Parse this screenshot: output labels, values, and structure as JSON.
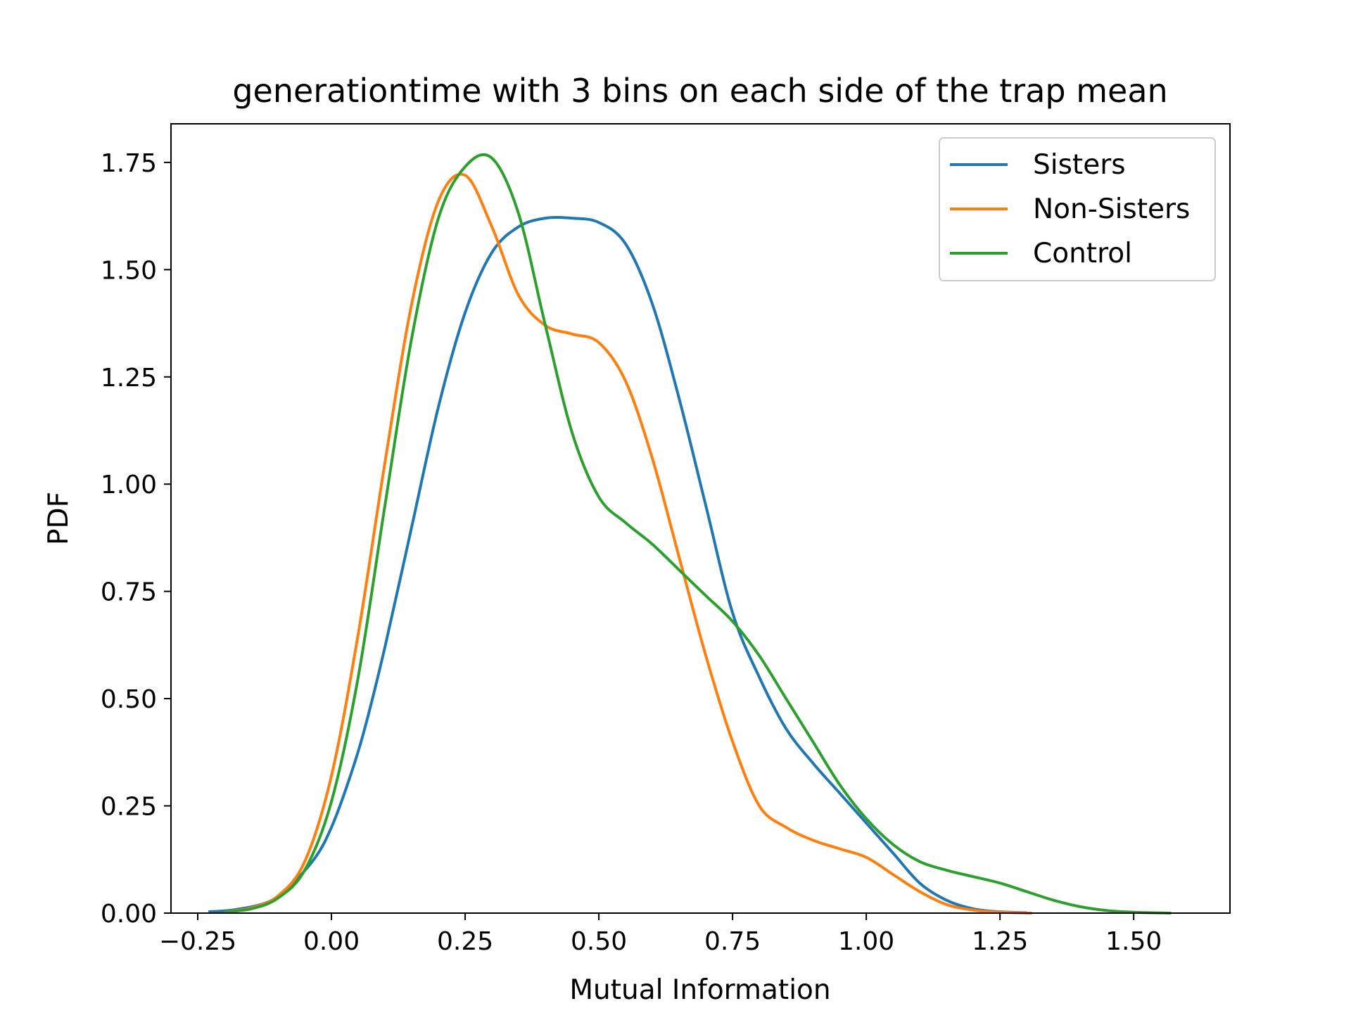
{
  "chart_data": {
    "type": "line",
    "title": "generationtime with 3 bins on each side of the trap mean",
    "xlabel": "Mutual Information",
    "ylabel": "PDF",
    "xlim": [
      -0.3,
      1.68
    ],
    "ylim": [
      0,
      1.84
    ],
    "xticks": [
      -0.25,
      0.0,
      0.25,
      0.5,
      0.75,
      1.0,
      1.25,
      1.5
    ],
    "xtick_labels": [
      "−0.25",
      "0.00",
      "0.25",
      "0.50",
      "0.75",
      "1.00",
      "1.25",
      "1.50"
    ],
    "yticks": [
      0.0,
      0.25,
      0.5,
      0.75,
      1.0,
      1.25,
      1.5,
      1.75
    ],
    "ytick_labels": [
      "0.00",
      "0.25",
      "0.50",
      "0.75",
      "1.00",
      "1.25",
      "1.50",
      "1.75"
    ],
    "grid": false,
    "legend_position": "top-right",
    "series": [
      {
        "name": "Sisters",
        "color": "#1f77b4",
        "points": [
          [
            -0.23,
            0.003
          ],
          [
            -0.18,
            0.008
          ],
          [
            -0.12,
            0.025
          ],
          [
            -0.08,
            0.06
          ],
          [
            -0.03,
            0.13
          ],
          [
            0.0,
            0.2
          ],
          [
            0.03,
            0.3
          ],
          [
            0.06,
            0.42
          ],
          [
            0.1,
            0.62
          ],
          [
            0.15,
            0.9
          ],
          [
            0.2,
            1.18
          ],
          [
            0.25,
            1.4
          ],
          [
            0.3,
            1.54
          ],
          [
            0.35,
            1.6
          ],
          [
            0.4,
            1.62
          ],
          [
            0.45,
            1.62
          ],
          [
            0.5,
            1.61
          ],
          [
            0.55,
            1.56
          ],
          [
            0.6,
            1.42
          ],
          [
            0.65,
            1.2
          ],
          [
            0.7,
            0.95
          ],
          [
            0.75,
            0.7
          ],
          [
            0.8,
            0.55
          ],
          [
            0.85,
            0.43
          ],
          [
            0.9,
            0.35
          ],
          [
            0.95,
            0.28
          ],
          [
            1.0,
            0.21
          ],
          [
            1.05,
            0.14
          ],
          [
            1.1,
            0.07
          ],
          [
            1.15,
            0.03
          ],
          [
            1.2,
            0.01
          ],
          [
            1.25,
            0.003
          ],
          [
            1.3,
            0.001
          ]
        ]
      },
      {
        "name": "Non-Sisters",
        "color": "#ff7f0e",
        "points": [
          [
            -0.2,
            0.003
          ],
          [
            -0.15,
            0.012
          ],
          [
            -0.1,
            0.04
          ],
          [
            -0.05,
            0.12
          ],
          [
            0.0,
            0.32
          ],
          [
            0.05,
            0.65
          ],
          [
            0.1,
            1.05
          ],
          [
            0.15,
            1.42
          ],
          [
            0.2,
            1.66
          ],
          [
            0.25,
            1.72
          ],
          [
            0.3,
            1.6
          ],
          [
            0.35,
            1.44
          ],
          [
            0.4,
            1.37
          ],
          [
            0.45,
            1.35
          ],
          [
            0.5,
            1.33
          ],
          [
            0.55,
            1.24
          ],
          [
            0.6,
            1.06
          ],
          [
            0.65,
            0.83
          ],
          [
            0.7,
            0.6
          ],
          [
            0.75,
            0.4
          ],
          [
            0.8,
            0.25
          ],
          [
            0.85,
            0.2
          ],
          [
            0.9,
            0.17
          ],
          [
            0.95,
            0.15
          ],
          [
            1.0,
            0.13
          ],
          [
            1.05,
            0.09
          ],
          [
            1.1,
            0.05
          ],
          [
            1.15,
            0.02
          ],
          [
            1.2,
            0.007
          ],
          [
            1.25,
            0.002
          ],
          [
            1.31,
            0.0
          ]
        ]
      },
      {
        "name": "Control",
        "color": "#2ca02c",
        "points": [
          [
            -0.2,
            0.003
          ],
          [
            -0.15,
            0.01
          ],
          [
            -0.1,
            0.035
          ],
          [
            -0.05,
            0.1
          ],
          [
            0.0,
            0.26
          ],
          [
            0.05,
            0.55
          ],
          [
            0.1,
            0.95
          ],
          [
            0.15,
            1.34
          ],
          [
            0.2,
            1.62
          ],
          [
            0.25,
            1.74
          ],
          [
            0.3,
            1.76
          ],
          [
            0.35,
            1.63
          ],
          [
            0.4,
            1.37
          ],
          [
            0.45,
            1.12
          ],
          [
            0.5,
            0.97
          ],
          [
            0.55,
            0.91
          ],
          [
            0.6,
            0.86
          ],
          [
            0.65,
            0.8
          ],
          [
            0.7,
            0.74
          ],
          [
            0.75,
            0.68
          ],
          [
            0.8,
            0.6
          ],
          [
            0.85,
            0.5
          ],
          [
            0.9,
            0.4
          ],
          [
            0.95,
            0.3
          ],
          [
            1.0,
            0.22
          ],
          [
            1.05,
            0.16
          ],
          [
            1.1,
            0.12
          ],
          [
            1.15,
            0.1
          ],
          [
            1.2,
            0.085
          ],
          [
            1.25,
            0.07
          ],
          [
            1.3,
            0.05
          ],
          [
            1.35,
            0.03
          ],
          [
            1.4,
            0.015
          ],
          [
            1.45,
            0.006
          ],
          [
            1.5,
            0.002
          ],
          [
            1.57,
            0.0
          ]
        ]
      }
    ]
  }
}
